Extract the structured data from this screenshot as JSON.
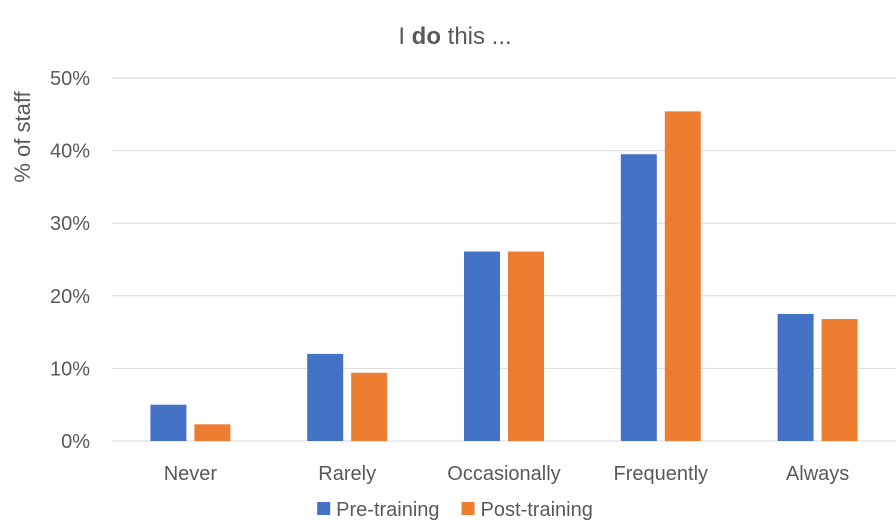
{
  "chart_data": {
    "type": "bar",
    "title": {
      "pre": "I ",
      "bold": "do",
      "post": " this ..."
    },
    "ylabel": "% of staff",
    "xlabel": "",
    "categories": [
      "Never",
      "Rarely",
      "Occasionally",
      "Frequently",
      "Always"
    ],
    "series": [
      {
        "name": "Pre-training",
        "color": "#4472c4",
        "values": [
          5.0,
          12.0,
          26.1,
          39.5,
          17.5
        ]
      },
      {
        "name": "Post-training",
        "color": "#ed7d31",
        "values": [
          2.3,
          9.4,
          26.1,
          45.4,
          16.8
        ]
      }
    ],
    "ylim": [
      0,
      50
    ],
    "yticks": [
      0,
      10,
      20,
      30,
      40,
      50
    ],
    "ytick_labels": [
      "0%",
      "10%",
      "20%",
      "30%",
      "40%",
      "50%"
    ],
    "grid": true,
    "legend_position": "bottom"
  }
}
